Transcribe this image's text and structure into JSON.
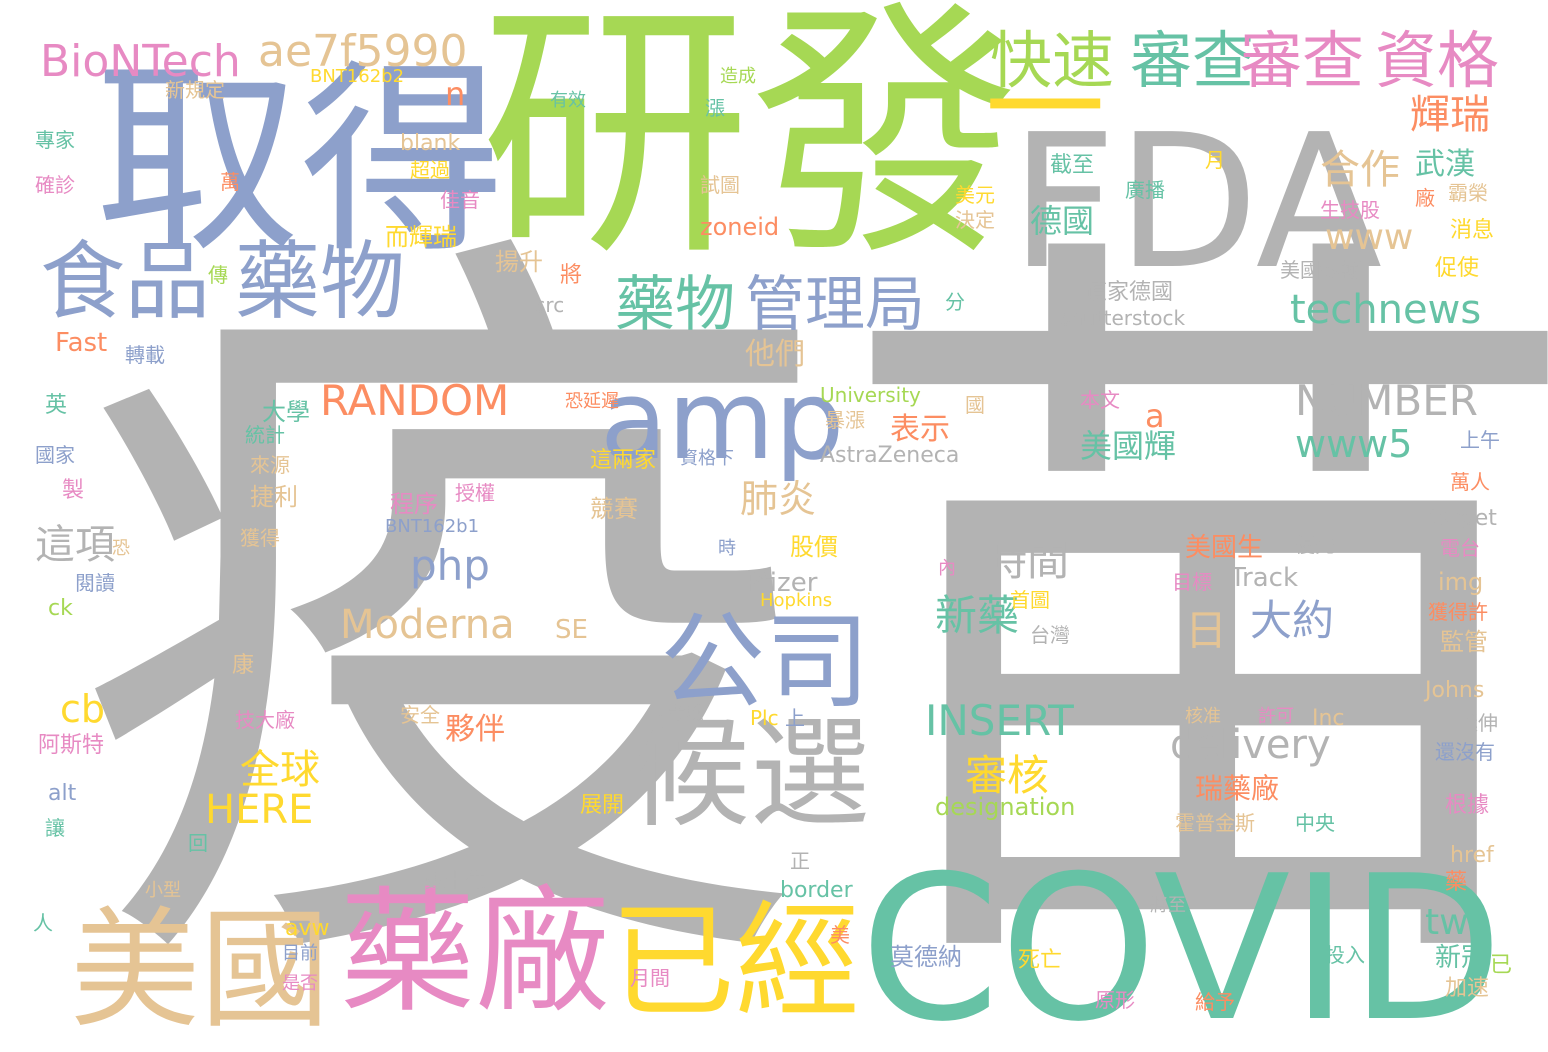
{
  "palette": {
    "gray": "#b3b3b3",
    "blue": "#8da0cb",
    "green": "#a6d854",
    "yellow": "#ffd92f",
    "teal": "#66c2a5",
    "pink": "#e78ac3",
    "tan": "#e5c494",
    "orange": "#fc8d62"
  },
  "words": [
    {
      "text": "疫苗",
      "color": "gray"
    },
    {
      "text": "研發",
      "color": "green"
    },
    {
      "text": "取得",
      "color": "blue"
    },
    {
      "text": "FDA",
      "color": "gray"
    },
    {
      "text": "COVID",
      "color": "teal"
    },
    {
      "text": "藥廠",
      "color": "pink"
    },
    {
      "text": "美國",
      "color": "tan"
    },
    {
      "text": "已經",
      "color": "yellow"
    },
    {
      "text": "候選",
      "color": "gray"
    },
    {
      "text": "公司",
      "color": "blue"
    },
    {
      "text": "amp",
      "color": "blue"
    },
    {
      "text": "食品",
      "color": "blue"
    },
    {
      "text": "藥物",
      "color": "blue"
    },
    {
      "text": "快速",
      "color": "green"
    },
    {
      "text": "審查",
      "color": "teal"
    },
    {
      "text": "審查",
      "color": "pink"
    },
    {
      "text": "資格",
      "color": "pink"
    },
    {
      "text": "一",
      "color": "yellow"
    },
    {
      "text": "BioNTech",
      "color": "pink"
    },
    {
      "text": "ae7f5990",
      "color": "tan"
    },
    {
      "text": "藥物",
      "color": "teal"
    },
    {
      "text": "管理局",
      "color": "blue"
    },
    {
      "text": "輝瑞",
      "color": "orange"
    },
    {
      "text": "合作",
      "color": "tan"
    },
    {
      "text": "RANDOM",
      "color": "orange"
    },
    {
      "text": "NUMBER",
      "color": "gray"
    },
    {
      "text": "technews",
      "color": "teal"
    },
    {
      "text": "www5",
      "color": "teal"
    },
    {
      "text": "www",
      "color": "tan"
    },
    {
      "text": "INSERT",
      "color": "teal"
    },
    {
      "text": "delivery",
      "color": "gray"
    },
    {
      "text": "Moderna",
      "color": "tan"
    },
    {
      "text": "php",
      "color": "blue"
    },
    {
      "text": "肺炎",
      "color": "tan"
    },
    {
      "text": "時間",
      "color": "gray"
    },
    {
      "text": "新藥",
      "color": "teal"
    },
    {
      "text": "大約",
      "color": "blue"
    },
    {
      "text": "日",
      "color": "tan"
    },
    {
      "text": "審核",
      "color": "yellow"
    },
    {
      "text": "全球",
      "color": "yellow"
    },
    {
      "text": "HERE",
      "color": "yellow"
    },
    {
      "text": "這項",
      "color": "gray"
    },
    {
      "text": "cb",
      "color": "yellow"
    },
    {
      "text": "tw",
      "color": "teal"
    },
    {
      "text": "德國",
      "color": "teal"
    },
    {
      "text": "武漢",
      "color": "teal"
    },
    {
      "text": "n",
      "color": "orange"
    },
    {
      "text": "a",
      "color": "orange"
    },
    {
      "text": "美國輝",
      "color": "teal"
    },
    {
      "text": "表示",
      "color": "orange"
    },
    {
      "text": "他們",
      "color": "tan"
    },
    {
      "text": "Pfizer",
      "color": "gray"
    },
    {
      "text": "Track",
      "color": "gray"
    },
    {
      "text": "美國生",
      "color": "orange"
    },
    {
      "text": "瑞藥廠",
      "color": "orange"
    },
    {
      "text": "designation",
      "color": "green"
    },
    {
      "text": "夥伴",
      "color": "orange"
    },
    {
      "text": "SE",
      "color": "tan"
    },
    {
      "text": "Fast",
      "color": "orange"
    },
    {
      "text": "zoneid",
      "color": "orange"
    },
    {
      "text": "AstraZeneca",
      "color": "gray"
    },
    {
      "text": "University",
      "color": "green"
    },
    {
      "text": "股價",
      "color": "yellow"
    },
    {
      "text": "競賽",
      "color": "tan"
    },
    {
      "text": "捷利",
      "color": "tan"
    },
    {
      "text": "程序",
      "color": "pink"
    },
    {
      "text": "這兩家",
      "color": "yellow"
    },
    {
      "text": "BNT162b1",
      "color": "blue"
    },
    {
      "text": "BNT162b2",
      "color": "yellow"
    },
    {
      "text": "blank",
      "color": "tan"
    },
    {
      "text": "超過",
      "color": "yellow"
    },
    {
      "text": "佳音",
      "color": "pink"
    },
    {
      "text": "而輝瑞",
      "color": "yellow"
    },
    {
      "text": "揚升",
      "color": "tan"
    },
    {
      "text": "將",
      "color": "orange"
    },
    {
      "text": "src",
      "color": "gray"
    },
    {
      "text": "新規定",
      "color": "tan"
    },
    {
      "text": "有效",
      "color": "teal"
    },
    {
      "text": "造成",
      "color": "green"
    },
    {
      "text": "漲",
      "color": "teal"
    },
    {
      "text": "專家",
      "color": "teal"
    },
    {
      "text": "確診",
      "color": "pink"
    },
    {
      "text": "萬",
      "color": "orange"
    },
    {
      "text": "傳",
      "color": "green"
    },
    {
      "text": "試圖",
      "color": "tan"
    },
    {
      "text": "截至",
      "color": "teal"
    },
    {
      "text": "廣播",
      "color": "teal"
    },
    {
      "text": "月",
      "color": "yellow"
    },
    {
      "text": "美元",
      "color": "yellow"
    },
    {
      "text": "決定",
      "color": "tan"
    },
    {
      "text": "廠",
      "color": "orange"
    },
    {
      "text": "霸榮",
      "color": "tan"
    },
    {
      "text": "生技股",
      "color": "pink"
    },
    {
      "text": "消息",
      "color": "yellow"
    },
    {
      "text": "美國約翰",
      "color": "gray"
    },
    {
      "text": "促使",
      "color": "yellow"
    },
    {
      "text": "這家德國",
      "color": "gray"
    },
    {
      "text": "shutterstock",
      "color": "gray"
    },
    {
      "text": "分",
      "color": "teal"
    },
    {
      "text": "轉載",
      "color": "blue"
    },
    {
      "text": "英",
      "color": "teal"
    },
    {
      "text": "恐延遲",
      "color": "orange"
    },
    {
      "text": "大學",
      "color": "teal"
    },
    {
      "text": "統計",
      "color": "teal"
    },
    {
      "text": "暴漲",
      "color": "tan"
    },
    {
      "text": "國",
      "color": "tan"
    },
    {
      "text": "本文",
      "color": "pink"
    },
    {
      "text": "上午",
      "color": "blue"
    },
    {
      "text": "國家",
      "color": "blue"
    },
    {
      "text": "來源",
      "color": "tan"
    },
    {
      "text": "資格下",
      "color": "blue"
    },
    {
      "text": "製",
      "color": "pink"
    },
    {
      "text": "授權",
      "color": "pink"
    },
    {
      "text": "萬人",
      "color": "orange"
    },
    {
      "text": "target",
      "color": "gray"
    },
    {
      "text": "恐",
      "color": "tan"
    },
    {
      "text": "獲得",
      "color": "tan"
    },
    {
      "text": "時",
      "color": "blue"
    },
    {
      "text": "內",
      "color": "pink"
    },
    {
      "text": "優先",
      "color": "gray"
    },
    {
      "text": "電台",
      "color": "pink"
    },
    {
      "text": "閱讀",
      "color": "blue"
    },
    {
      "text": "目標",
      "color": "pink"
    },
    {
      "text": "img",
      "color": "tan"
    },
    {
      "text": "ck",
      "color": "green"
    },
    {
      "text": "首圖",
      "color": "yellow"
    },
    {
      "text": "Hopkins",
      "color": "yellow"
    },
    {
      "text": "獲得許",
      "color": "orange"
    },
    {
      "text": "台灣",
      "color": "gray"
    },
    {
      "text": "監管",
      "color": "tan"
    },
    {
      "text": "康",
      "color": "tan"
    },
    {
      "text": "Johns",
      "color": "tan"
    },
    {
      "text": "技大廠",
      "color": "pink"
    },
    {
      "text": "安全",
      "color": "tan"
    },
    {
      "text": "考驗",
      "color": "gray"
    },
    {
      "text": "Plc",
      "color": "yellow"
    },
    {
      "text": "上",
      "color": "blue"
    },
    {
      "text": "核准",
      "color": "tan"
    },
    {
      "text": "許可",
      "color": "pink"
    },
    {
      "text": "Inc",
      "color": "tan"
    },
    {
      "text": "延伸",
      "color": "gray"
    },
    {
      "text": "阿斯特",
      "color": "pink"
    },
    {
      "text": "還沒有",
      "color": "blue"
    },
    {
      "text": "alt",
      "color": "blue"
    },
    {
      "text": "展開",
      "color": "yellow"
    },
    {
      "text": "霍普金斯",
      "color": "tan"
    },
    {
      "text": "中央",
      "color": "teal"
    },
    {
      "text": "根據",
      "color": "pink"
    },
    {
      "text": "讓",
      "color": "teal"
    },
    {
      "text": "回",
      "color": "teal"
    },
    {
      "text": "正",
      "color": "gray"
    },
    {
      "text": "href",
      "color": "tan"
    },
    {
      "text": "小型",
      "color": "tan"
    },
    {
      "text": "數十億",
      "color": "gray"
    },
    {
      "text": "border",
      "color": "teal"
    },
    {
      "text": "藥",
      "color": "orange"
    },
    {
      "text": "將至",
      "color": "gray"
    },
    {
      "text": "人",
      "color": "teal"
    },
    {
      "text": "avw",
      "color": "yellow"
    },
    {
      "text": "目前",
      "color": "blue"
    },
    {
      "text": "美",
      "color": "orange"
    },
    {
      "text": "莫德納",
      "color": "blue"
    },
    {
      "text": "投入",
      "color": "teal"
    },
    {
      "text": "新冠",
      "color": "teal"
    },
    {
      "text": "已",
      "color": "green"
    },
    {
      "text": "是否",
      "color": "pink"
    },
    {
      "text": "月間",
      "color": "pink"
    },
    {
      "text": "死亡",
      "color": "yellow"
    },
    {
      "text": "加速",
      "color": "tan"
    },
    {
      "text": "原形",
      "color": "pink"
    },
    {
      "text": "給予",
      "color": "orange"
    }
  ]
}
